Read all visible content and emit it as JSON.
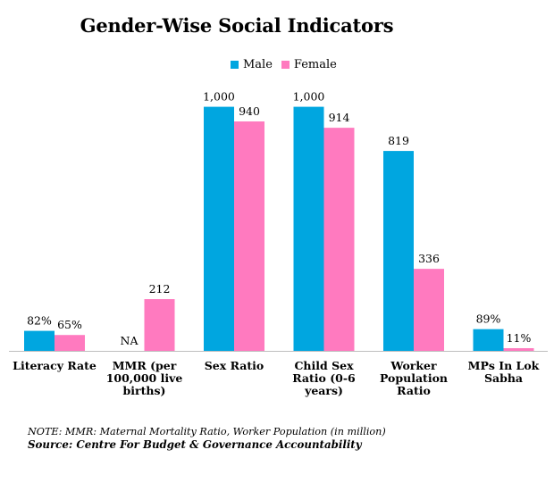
{
  "chart_data": {
    "type": "bar",
    "title": "Gender-Wise Social Indicators",
    "categories": [
      [
        "Literacy Rate"
      ],
      [
        "MMR (per",
        "100,000 live",
        "births)"
      ],
      [
        "Sex Ratio"
      ],
      [
        "Child Sex",
        "Ratio (0-6",
        "years)"
      ],
      [
        "Worker",
        "Population",
        "Ratio"
      ],
      [
        "MPs In Lok",
        "Sabha"
      ]
    ],
    "series": [
      {
        "name": "Male",
        "color": "#00A6E0",
        "values": [
          82,
          null,
          1000,
          1000,
          819,
          89
        ],
        "labels": [
          "82%",
          "NA",
          "1,000",
          "1,000",
          "819",
          "89%"
        ]
      },
      {
        "name": "Female",
        "color": "#FF7ABF",
        "values": [
          65,
          212,
          940,
          914,
          336,
          11
        ],
        "labels": [
          "65%",
          "212",
          "940",
          "914",
          "336",
          "11%"
        ]
      }
    ],
    "ylim": [
      0,
      1090
    ],
    "xlabel": "",
    "ylabel": "",
    "grid": false,
    "legend_position": "top"
  },
  "footer": {
    "note": "NOTE: MMR: Maternal Mortality Ratio, Worker Population (in million)",
    "source": "Source: Centre For Budget & Governance Accountability"
  }
}
